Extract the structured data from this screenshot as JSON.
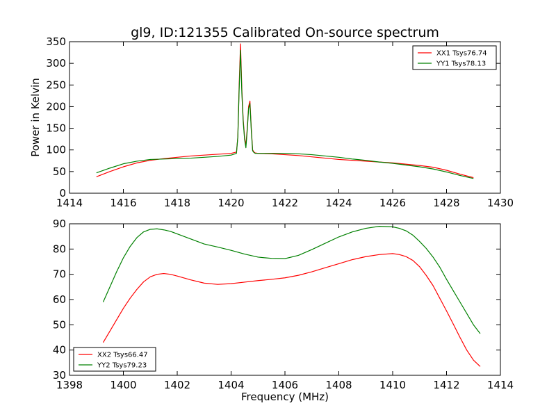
{
  "chart_data": [
    {
      "type": "line",
      "title": "gl9, ID:121355 Calibrated On-source spectrum",
      "xlabel": "",
      "ylabel": "Power in Kelvin",
      "xlim": [
        1414,
        1430
      ],
      "ylim": [
        0,
        350
      ],
      "xticks": [
        1414,
        1416,
        1418,
        1420,
        1422,
        1424,
        1426,
        1428,
        1430
      ],
      "yticks": [
        0,
        50,
        100,
        150,
        200,
        250,
        300,
        350
      ],
      "legend_position": "top-right",
      "series": [
        {
          "name": "XX1 Tsys76.74",
          "color": "#ff0000",
          "x": [
            1415.0,
            1415.5,
            1416.0,
            1416.5,
            1417.0,
            1417.5,
            1418.0,
            1418.5,
            1419.0,
            1419.5,
            1420.0,
            1420.2,
            1420.25,
            1420.3,
            1420.35,
            1420.4,
            1420.45,
            1420.5,
            1420.55,
            1420.6,
            1420.65,
            1420.7,
            1420.75,
            1420.8,
            1420.85,
            1420.9,
            1421.0,
            1421.5,
            1422.0,
            1422.5,
            1423.0,
            1423.5,
            1424.0,
            1424.5,
            1425.0,
            1425.5,
            1426.0,
            1426.5,
            1427.0,
            1427.5,
            1428.0,
            1428.5,
            1429.0
          ],
          "y": [
            38,
            50,
            61,
            70,
            76,
            80,
            83,
            86,
            88,
            90,
            92,
            95,
            130,
            250,
            345,
            240,
            170,
            130,
            110,
            150,
            200,
            213,
            150,
            100,
            95,
            93,
            92,
            91,
            89,
            87,
            84,
            81,
            78,
            76,
            74,
            72,
            70,
            67,
            64,
            60,
            53,
            44,
            36
          ]
        },
        {
          "name": "YY1 Tsys78.13",
          "color": "#008000",
          "x": [
            1415.0,
            1415.5,
            1416.0,
            1416.5,
            1417.0,
            1417.5,
            1418.0,
            1418.5,
            1419.0,
            1419.5,
            1420.0,
            1420.2,
            1420.25,
            1420.3,
            1420.35,
            1420.4,
            1420.45,
            1420.5,
            1420.55,
            1420.6,
            1420.65,
            1420.7,
            1420.75,
            1420.8,
            1420.85,
            1420.9,
            1421.0,
            1421.5,
            1422.0,
            1422.5,
            1423.0,
            1423.5,
            1424.0,
            1424.5,
            1425.0,
            1425.5,
            1426.0,
            1426.5,
            1427.0,
            1427.5,
            1428.0,
            1428.5,
            1429.0
          ],
          "y": [
            47,
            58,
            68,
            74,
            78,
            79,
            80,
            81,
            83,
            85,
            88,
            92,
            130,
            240,
            330,
            230,
            165,
            125,
            105,
            145,
            195,
            207,
            145,
            98,
            94,
            92,
            92,
            92,
            92,
            91,
            89,
            86,
            83,
            79,
            76,
            72,
            69,
            65,
            61,
            56,
            49,
            41,
            34
          ]
        }
      ]
    },
    {
      "type": "line",
      "title": "",
      "xlabel": "Frequency (MHz)",
      "ylabel": "",
      "xlim": [
        1398,
        1414
      ],
      "ylim": [
        30,
        90
      ],
      "xticks": [
        1398,
        1400,
        1402,
        1404,
        1406,
        1408,
        1410,
        1412,
        1414
      ],
      "yticks": [
        30,
        40,
        50,
        60,
        70,
        80,
        90
      ],
      "legend_position": "bottom-left",
      "series": [
        {
          "name": "XX2 Tsys66.47",
          "color": "#ff0000",
          "x": [
            1399.25,
            1399.5,
            1399.75,
            1400.0,
            1400.25,
            1400.5,
            1400.75,
            1401.0,
            1401.25,
            1401.5,
            1401.75,
            1402.0,
            1402.5,
            1403.0,
            1403.5,
            1404.0,
            1404.5,
            1405.0,
            1405.5,
            1406.0,
            1406.5,
            1407.0,
            1407.5,
            1408.0,
            1408.5,
            1409.0,
            1409.5,
            1410.0,
            1410.25,
            1410.5,
            1410.75,
            1411.0,
            1411.25,
            1411.5,
            1411.75,
            1412.0,
            1412.25,
            1412.5,
            1412.75,
            1413.0,
            1413.25
          ],
          "y": [
            43,
            47.5,
            52,
            56.5,
            60.5,
            64,
            67,
            69,
            70,
            70.3,
            70,
            69.3,
            67.8,
            66.5,
            66,
            66.3,
            66.9,
            67.5,
            68,
            68.6,
            69.6,
            71,
            72.6,
            74.2,
            75.8,
            77,
            77.8,
            78.2,
            77.8,
            77,
            75.5,
            73,
            69.5,
            65.5,
            60.5,
            55.5,
            50.3,
            45,
            40,
            36,
            33.5
          ]
        },
        {
          "name": "YY2 Tsys79.23",
          "color": "#008000",
          "x": [
            1399.25,
            1399.5,
            1399.75,
            1400.0,
            1400.25,
            1400.5,
            1400.75,
            1401.0,
            1401.25,
            1401.5,
            1401.75,
            1402.0,
            1402.5,
            1403.0,
            1403.5,
            1404.0,
            1404.5,
            1405.0,
            1405.5,
            1406.0,
            1406.5,
            1407.0,
            1407.5,
            1408.0,
            1408.5,
            1409.0,
            1409.5,
            1410.0,
            1410.25,
            1410.5,
            1410.75,
            1411.0,
            1411.25,
            1411.5,
            1411.75,
            1412.0,
            1412.25,
            1412.5,
            1412.75,
            1413.0,
            1413.25
          ],
          "y": [
            59,
            65,
            71,
            76.5,
            81,
            84.5,
            86.8,
            87.8,
            88,
            87.6,
            87,
            86,
            84,
            82,
            80.8,
            79.5,
            78,
            76.8,
            76.3,
            76.2,
            77.5,
            79.8,
            82.3,
            84.8,
            86.8,
            88.2,
            89,
            88.8,
            88.2,
            87.2,
            85.5,
            83,
            80.2,
            76.8,
            72.8,
            68,
            63.5,
            59,
            54.5,
            50,
            46.5
          ]
        }
      ]
    }
  ]
}
